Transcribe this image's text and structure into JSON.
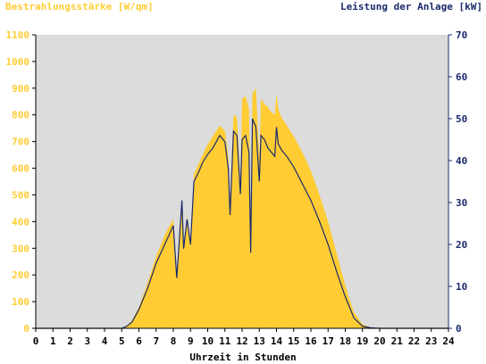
{
  "chart_data": {
    "type": "area",
    "title_left": "Bestrahlungsstärke [W/qm]",
    "title_right": "Leistung der Anlage [kW]",
    "xlabel": "Uhrzeit in Stunden",
    "xlim": [
      0,
      24
    ],
    "ylim_left": [
      0,
      1100
    ],
    "ylim_right": [
      0,
      70
    ],
    "x_ticks": [
      "0",
      "1",
      "2",
      "3",
      "4",
      "5",
      "6",
      "7",
      "8",
      "9",
      "10",
      "11",
      "12",
      "13",
      "14",
      "15",
      "16",
      "17",
      "18",
      "19",
      "20",
      "21",
      "22",
      "23",
      "24"
    ],
    "y_left_ticks": [
      "0",
      "100",
      "200",
      "300",
      "400",
      "500",
      "600",
      "700",
      "800",
      "900",
      "1000",
      "1100"
    ],
    "y_right_ticks": [
      "0",
      "10",
      "20",
      "30",
      "40",
      "50",
      "60",
      "70"
    ],
    "colors": {
      "irradiance_fill": "#ffcc33",
      "power_line": "#1a2a6c",
      "plot_background": "#dcdcdc",
      "left_axis_labels": "#ffcc33",
      "right_axis_labels": "#1a2a6c"
    },
    "series": [
      {
        "name": "Bestrahlungsstärke [W/qm]",
        "axis": "left",
        "style": "area",
        "x": [
          0,
          5.0,
          5.3,
          5.6,
          6.0,
          6.5,
          7.0,
          7.5,
          8.0,
          8.2,
          8.3,
          8.5,
          8.6,
          8.8,
          9.0,
          9.2,
          9.5,
          9.7,
          10.0,
          10.3,
          10.5,
          10.7,
          11.0,
          11.2,
          11.3,
          11.5,
          11.7,
          11.9,
          12.0,
          12.2,
          12.4,
          12.5,
          12.6,
          12.8,
          13.0,
          13.1,
          13.3,
          13.5,
          13.7,
          13.9,
          14.0,
          14.1,
          14.3,
          14.6,
          15.0,
          15.5,
          16.0,
          16.5,
          17.0,
          17.5,
          18.0,
          18.5,
          19.0,
          19.5,
          20.0,
          20.3,
          24
        ],
        "y": [
          0,
          0,
          10,
          30,
          80,
          170,
          270,
          350,
          410,
          200,
          300,
          480,
          320,
          420,
          330,
          580,
          620,
          650,
          690,
          720,
          740,
          760,
          740,
          640,
          480,
          800,
          790,
          550,
          860,
          870,
          820,
          380,
          880,
          900,
          640,
          860,
          840,
          830,
          810,
          800,
          880,
          820,
          790,
          760,
          720,
          660,
          590,
          500,
          400,
          280,
          160,
          60,
          15,
          2,
          0,
          0,
          0
        ]
      },
      {
        "name": "Leistung der Anlage [kW]",
        "axis": "right",
        "style": "line",
        "x": [
          0,
          5.0,
          5.3,
          5.6,
          6.0,
          6.5,
          7.0,
          7.5,
          8.0,
          8.2,
          8.3,
          8.5,
          8.6,
          8.8,
          9.0,
          9.2,
          9.5,
          9.7,
          10.0,
          10.3,
          10.5,
          10.7,
          11.0,
          11.2,
          11.3,
          11.5,
          11.7,
          11.9,
          12.0,
          12.2,
          12.4,
          12.5,
          12.6,
          12.8,
          13.0,
          13.1,
          13.3,
          13.5,
          13.7,
          13.9,
          14.0,
          14.1,
          14.3,
          14.6,
          15.0,
          15.5,
          16.0,
          16.5,
          17.0,
          17.5,
          18.0,
          18.5,
          19.0,
          19.5,
          20.0,
          20.3,
          24
        ],
        "y": [
          0,
          0,
          0.5,
          1.5,
          4.5,
          9.5,
          15.5,
          20,
          24.5,
          12,
          18,
          30.5,
          19,
          26,
          20,
          35,
          37.5,
          39.5,
          41.5,
          43,
          44.5,
          46,
          44.5,
          38,
          27,
          47,
          46,
          32,
          45,
          46,
          42,
          18,
          50,
          48,
          35,
          46,
          45,
          43,
          42,
          41,
          48,
          44,
          42.5,
          41,
          38.5,
          34.5,
          30.5,
          25.5,
          20,
          13.5,
          7.5,
          2.5,
          0.5,
          0.1,
          0,
          0,
          0
        ]
      }
    ]
  }
}
